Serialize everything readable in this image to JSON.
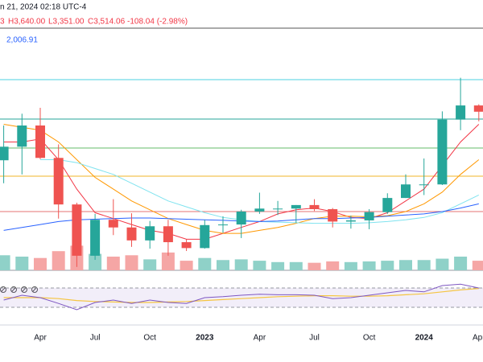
{
  "chart_data": {
    "type": "candlestick",
    "header": {
      "datetime": "n 21, 2024 02:18 UTC-4",
      "open_fragment": "3",
      "high": "H3,640.00",
      "low": "L3,351.00",
      "close": "C3,514.06",
      "change": "-108.04 (-2.98%)",
      "indicator_value": "2,006.91"
    },
    "categories": [
      null,
      null,
      "Apr",
      null,
      null,
      "Jul",
      null,
      null,
      "Oct",
      null,
      null,
      "2023",
      null,
      null,
      "Apr",
      null,
      null,
      "Jul",
      null,
      null,
      "Oct",
      null,
      null,
      "2024",
      null,
      null,
      "Apr"
    ],
    "open": [
      2690,
      2920,
      3280,
      2730,
      1940,
      1070,
      1680,
      1550,
      1330,
      1570,
      1300,
      1200,
      1590,
      1600,
      1820,
      1870,
      1870,
      1930,
      1860,
      1650,
      1670,
      1810,
      2050,
      2280,
      2280,
      3380,
      3620
    ],
    "high": [
      3280,
      3480,
      3580,
      2960,
      1970,
      1780,
      2030,
      1790,
      1660,
      1680,
      1350,
      1680,
      1740,
      1850,
      2140,
      2000,
      1930,
      2030,
      1880,
      1750,
      1860,
      2130,
      2450,
      2720,
      3520,
      4090,
      3640
    ],
    "low": [
      2300,
      2450,
      2710,
      1700,
      880,
      1000,
      1420,
      1220,
      1190,
      1070,
      1150,
      1190,
      1460,
      1370,
      1780,
      1760,
      1630,
      1830,
      1550,
      1530,
      1520,
      1780,
      2050,
      2100,
      2270,
      3200,
      3351
    ],
    "close": [
      2920,
      3280,
      2730,
      1940,
      1070,
      1680,
      1550,
      1330,
      1570,
      1300,
      1200,
      1590,
      1600,
      1820,
      1870,
      1870,
      1930,
      1860,
      1650,
      1670,
      1810,
      2050,
      2280,
      2280,
      3380,
      3620,
      3514
    ],
    "volume": [
      22,
      20,
      18,
      28,
      36,
      24,
      20,
      22,
      16,
      26,
      14,
      18,
      15,
      16,
      14,
      12,
      12,
      11,
      13,
      12,
      13,
      14,
      15,
      15,
      17,
      20,
      14
    ],
    "up_color": "#26a69a",
    "down_color": "#ef5350",
    "up_volume_color": "#8fd1c8",
    "down_volume_color": "#f5a6a5",
    "ylim": [
      700,
      5000
    ],
    "volume_max": 40,
    "levels": [
      {
        "value": 4058,
        "color": "#4dd0e1"
      },
      {
        "value": 3389,
        "color": "#26a69a"
      },
      {
        "value": 2898,
        "color": "#66bb6a"
      },
      {
        "value": 2420,
        "color": "#f0b429"
      },
      {
        "value": 1819,
        "color": "#e57373"
      }
    ],
    "series": [
      {
        "color": "#f23645",
        "values": [
          3000,
          3000,
          3050,
          2700,
          2200,
          1800,
          1700,
          1600,
          1500,
          1450,
          1350,
          1350,
          1450,
          1550,
          1650,
          1780,
          1850,
          1880,
          1820,
          1720,
          1700,
          1800,
          2000,
          2200,
          2600,
          3000,
          3300
        ]
      },
      {
        "color": "#ff9800",
        "values": [
          3300,
          3250,
          3200,
          3000,
          2700,
          2400,
          2200,
          2000,
          1850,
          1700,
          1600,
          1500,
          1450,
          1450,
          1500,
          1550,
          1620,
          1700,
          1740,
          1740,
          1730,
          1750,
          1820,
          1950,
          2150,
          2450,
          2700
        ]
      },
      {
        "color": "#7fe3ef",
        "values": [
          null,
          null,
          2700,
          2700,
          2650,
          2550,
          2450,
          2300,
          2150,
          2000,
          1900,
          1800,
          1720,
          1680,
          1650,
          1640,
          1630,
          1620,
          1620,
          1620,
          1630,
          1650,
          1680,
          1720,
          1800,
          1950,
          2100
        ]
      },
      {
        "color": "#2962ff",
        "values": [
          1500,
          1550,
          1600,
          1650,
          1680,
          1690,
          1700,
          1710,
          1710,
          1700,
          1690,
          1680,
          1670,
          1660,
          1650,
          1660,
          1680,
          1700,
          1700,
          1710,
          1720,
          1740,
          1760,
          1780,
          1820,
          1880,
          1950
        ]
      }
    ],
    "rsi": {
      "ylim": [
        0,
        100
      ],
      "band": [
        30,
        70
      ],
      "color": "#7e57c2",
      "values": [
        45,
        55,
        50,
        38,
        25,
        40,
        45,
        38,
        45,
        40,
        38,
        50,
        52,
        55,
        57,
        56,
        56,
        55,
        48,
        50,
        55,
        60,
        65,
        62,
        75,
        78,
        70
      ],
      "ma_color": "#f5c542",
      "ma_values": [
        50,
        50,
        50,
        48,
        44,
        42,
        41,
        40,
        40,
        41,
        42,
        44,
        46,
        48,
        50,
        52,
        53,
        54,
        54,
        53,
        53,
        54,
        56,
        58,
        62,
        66,
        69
      ]
    }
  }
}
